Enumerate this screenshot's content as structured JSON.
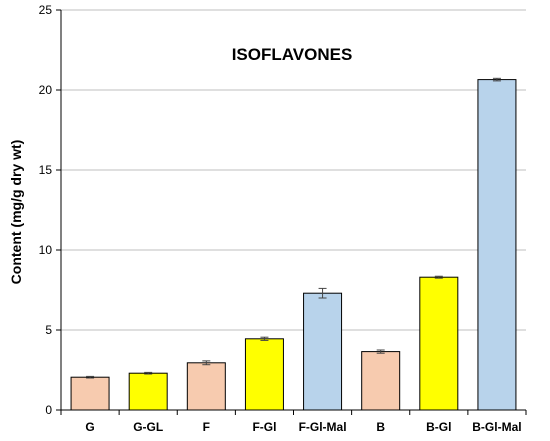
{
  "chart_data": {
    "type": "bar",
    "title": "ISOFLAVONES",
    "xlabel": "",
    "ylabel": "Content (mg/g dry wt)",
    "ylim": [
      0,
      25
    ],
    "yticks": [
      0,
      5,
      10,
      15,
      20,
      25
    ],
    "grid": true,
    "categories": [
      "G",
      "G-GL",
      "F",
      "F-Gl",
      "F-Gl-Mal",
      "B",
      "B-Gl",
      "B-Gl-Mal"
    ],
    "values": [
      2.05,
      2.3,
      2.95,
      4.45,
      7.3,
      3.65,
      8.3,
      20.65
    ],
    "errors": [
      0.05,
      0.05,
      0.12,
      0.1,
      0.3,
      0.1,
      0.06,
      0.08
    ],
    "colors": [
      "#f7cbaf",
      "#ffff00",
      "#f7cbaf",
      "#ffff00",
      "#b8d3eb",
      "#f7cbaf",
      "#ffff00",
      "#b8d3eb"
    ]
  }
}
